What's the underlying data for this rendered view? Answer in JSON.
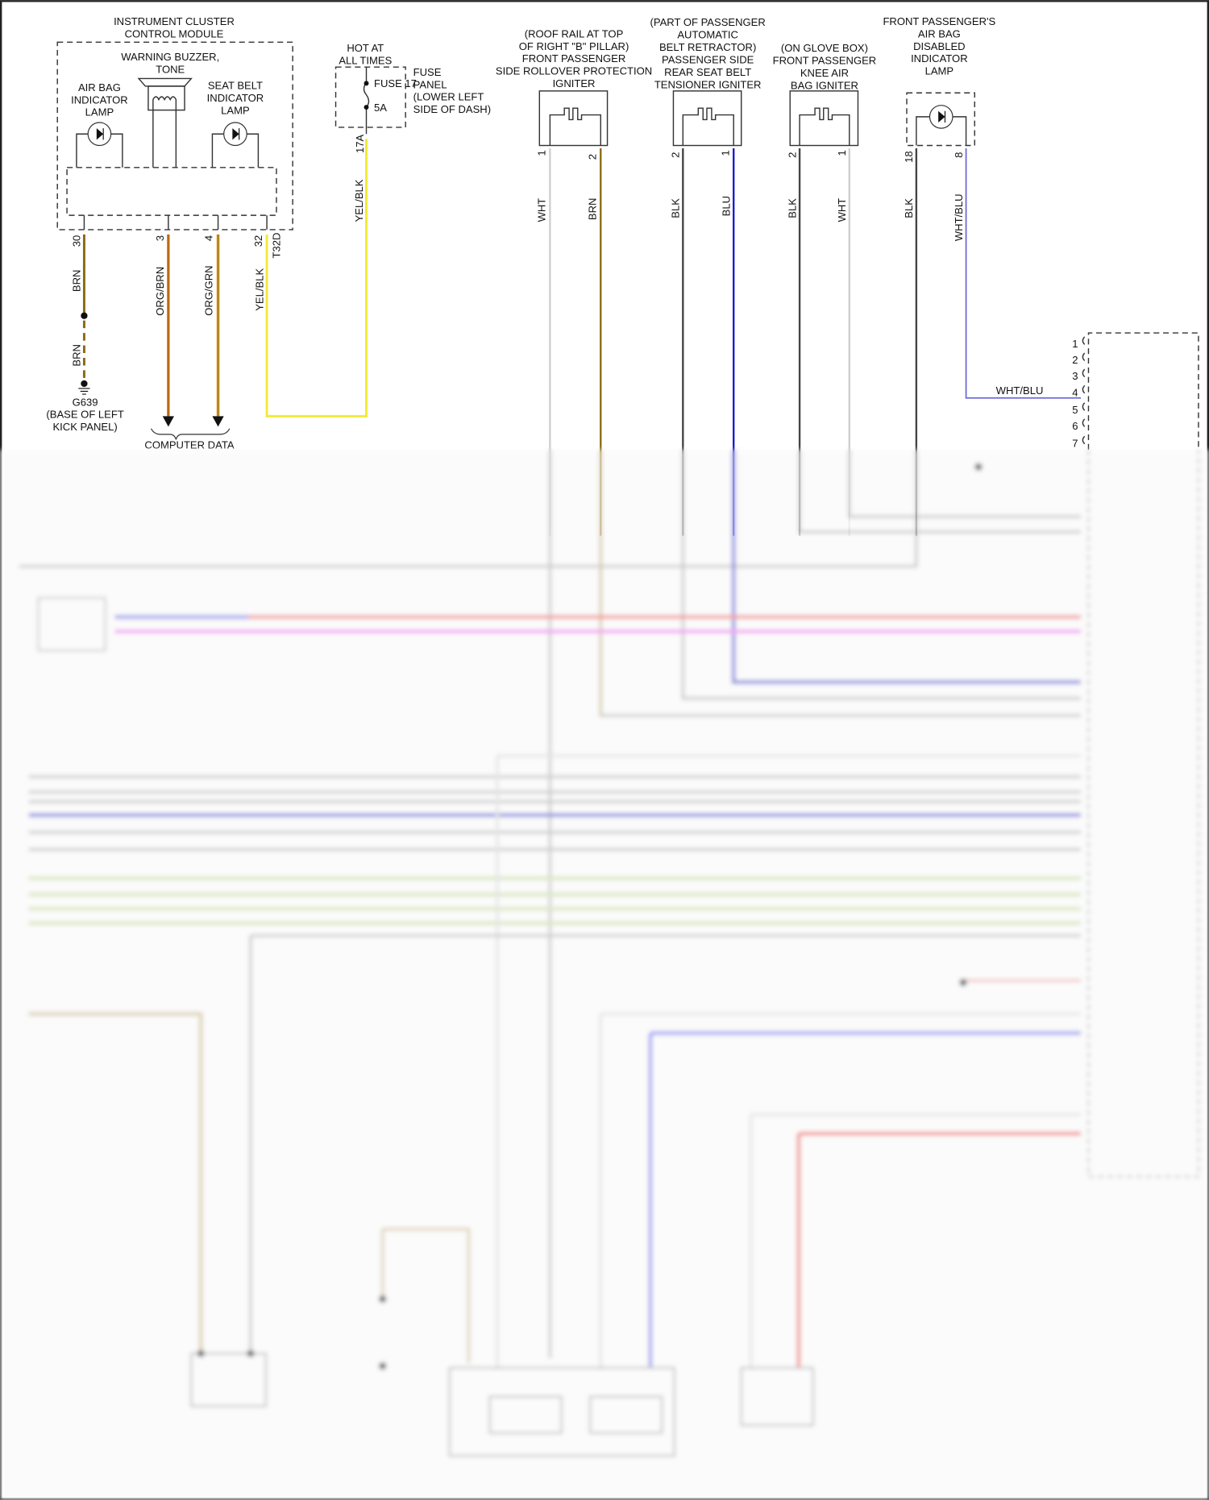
{
  "cluster": {
    "title": [
      "INSTRUMENT CLUSTER",
      "CONTROL MODULE"
    ],
    "buzzer": [
      "WARNING BUZZER,",
      "TONE"
    ],
    "airbag_lamp": [
      "AIR BAG",
      "INDICATOR",
      "LAMP"
    ],
    "seatbelt_lamp": [
      "SEAT BELT",
      "INDICATOR",
      "LAMP"
    ],
    "pins": [
      "30",
      "3",
      "4",
      "32"
    ],
    "connector": "T32D"
  },
  "wires": {
    "ground_a": "BRN",
    "ground_b": "BRN",
    "data1": "ORG/BRN",
    "data2": "ORG/GRN",
    "power1": "YEL/BLK",
    "power2": "YEL/BLK",
    "ign1_a": "WHT",
    "ign1_b": "BRN",
    "ign2_a": "BLK",
    "ign2_b": "BLU",
    "ign3_a": "BLK",
    "ign3_b": "WHT",
    "lamp_a": "BLK",
    "lamp_b": "WHT/BLU",
    "lamp_b_h": "WHT/BLU"
  },
  "ground": [
    "G639",
    "(BASE OF LEFT",
    "KICK PANEL)"
  ],
  "computer_data": "COMPUTER DATA",
  "fuse": {
    "hot": [
      "HOT AT",
      "ALL TIMES"
    ],
    "name": "FUSE 17",
    "rating": "5A",
    "panel": [
      "FUSE",
      "PANEL",
      "(LOWER LEFT",
      "SIDE OF DASH)"
    ],
    "pin": "17A"
  },
  "igniter1": {
    "label": [
      "(ROOF RAIL AT TOP",
      "OF RIGHT \"B\" PILLAR)",
      "FRONT PASSENGER",
      "SIDE ROLLOVER PROTECTION",
      "IGNITER"
    ],
    "pins": [
      "1",
      "2"
    ]
  },
  "igniter2": {
    "label": [
      "(PART OF PASSENGER",
      "AUTOMATIC",
      "BELT RETRACTOR)",
      "PASSENGER SIDE",
      "REAR SEAT BELT",
      "TENSIONER IGNITER"
    ],
    "pins": [
      "2",
      "1"
    ]
  },
  "igniter3": {
    "label": [
      "(ON GLOVE BOX)",
      "FRONT PASSENGER",
      "KNEE AIR",
      "BAG IGNITER"
    ],
    "pins": [
      "2",
      "1"
    ]
  },
  "disabled_lamp": {
    "label": [
      "FRONT PASSENGER'S",
      "AIR BAG",
      "DISABLED",
      "INDICATOR",
      "LAMP"
    ],
    "pins": [
      "18",
      "8"
    ]
  },
  "module_pins": [
    "1",
    "2",
    "3",
    "4",
    "5",
    "6",
    "7"
  ],
  "colors": {
    "brn": "#8b6a14",
    "org": "#e0861c",
    "yel": "#f2ea3a",
    "wht": "#cfcfcf",
    "blk": "#444444",
    "blu": "#1a1ad0",
    "whtblu": "#6a6ad8",
    "red": "#f07070",
    "pink": "#ee88ee",
    "grn": "#c8dca8"
  }
}
